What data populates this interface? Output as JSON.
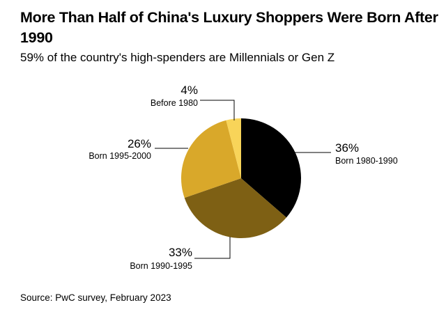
{
  "chart_data": {
    "type": "pie",
    "title": "More Than Half of China's Luxury Shoppers Were Born After 1990",
    "subtitle": "59% of the country's high-spenders are Millennials or Gen Z",
    "source": "Source: PwC survey, February 2023",
    "slices": [
      {
        "label": "Born 1980-1990",
        "value": 36,
        "value_label": "36%",
        "color": "#000000"
      },
      {
        "label": "Born 1990-1995",
        "value": 33,
        "value_label": "33%",
        "color": "#7e6014"
      },
      {
        "label": "Born 1995-2000",
        "value": 26,
        "value_label": "26%",
        "color": "#d9a82a"
      },
      {
        "label": "Before 1980",
        "value": 4,
        "value_label": "4%",
        "color": "#f8d459"
      }
    ]
  }
}
